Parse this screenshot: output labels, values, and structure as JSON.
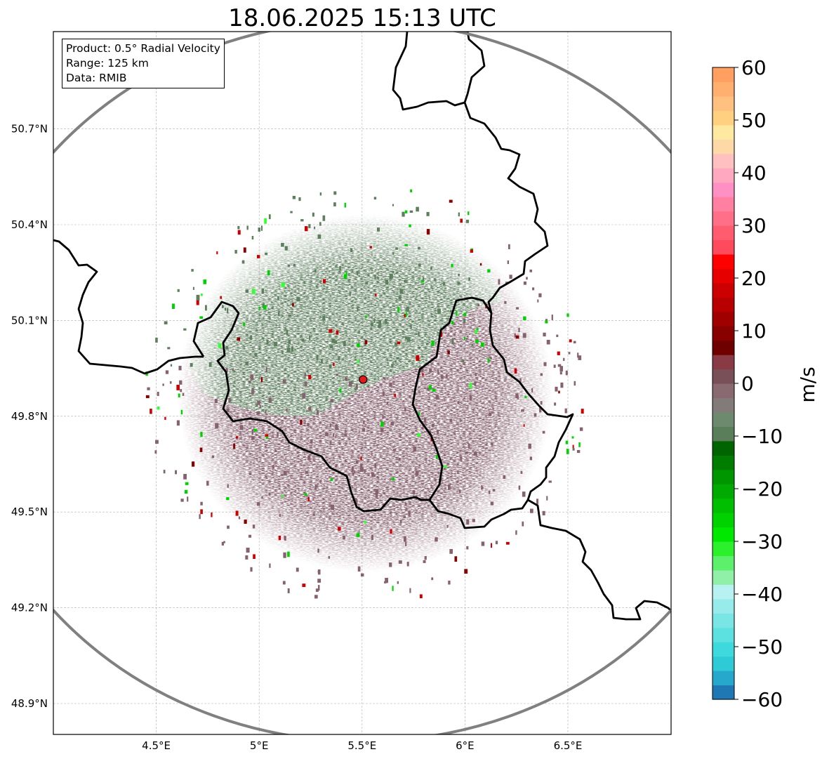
{
  "title": "18.06.2025 15:13 UTC",
  "info": {
    "product": "Product: 0.5° Radial Velocity",
    "range": "Range: 125 km",
    "data": "Data: RMIB"
  },
  "map": {
    "lon_range": [
      4.0,
      7.0
    ],
    "lat_range": [
      48.8,
      50.99
    ],
    "x_ticks": [
      "4.5°E",
      "5°E",
      "5.5°E",
      "6°E",
      "6.5°E"
    ],
    "x_tick_values": [
      4.5,
      5.0,
      5.5,
      6.0,
      6.5
    ],
    "y_ticks": [
      "48.9°N",
      "49.2°N",
      "49.5°N",
      "49.8°N",
      "50.1°N",
      "50.4°N",
      "50.7°N"
    ],
    "y_tick_values": [
      48.9,
      49.2,
      49.5,
      49.8,
      50.1,
      50.4,
      50.7
    ],
    "radar_site": {
      "lon": 5.505,
      "lat": 49.915,
      "color": "#e41a1c"
    },
    "range_ring_km": 125,
    "grid": true
  },
  "colorbar": {
    "label": "m/s",
    "min": -60,
    "max": 60,
    "ticks": [
      "60",
      "50",
      "40",
      "30",
      "20",
      "10",
      "0",
      "−10",
      "−20",
      "−30",
      "−40",
      "−50",
      "−60"
    ],
    "tick_values": [
      60,
      50,
      40,
      30,
      20,
      10,
      0,
      -10,
      -20,
      -30,
      -40,
      -50,
      -60
    ],
    "colors_bottom_to_top": [
      "#1f78b4",
      "#26a7cc",
      "#2ecad6",
      "#3ed9dc",
      "#5ce0e0",
      "#7ae5e5",
      "#98ebeb",
      "#b8f1f1",
      "#90f0a8",
      "#5cf06c",
      "#2cf02c",
      "#00e800",
      "#00d200",
      "#00be00",
      "#00aa00",
      "#009600",
      "#007d00",
      "#006400",
      "#5a7d5a",
      "#6e8a6e",
      "#837a7a",
      "#8a6a72",
      "#7a5058",
      "#8a3a44",
      "#6e0000",
      "#880000",
      "#a00000",
      "#b80000",
      "#cc0000",
      "#e60000",
      "#ff0000",
      "#ff4a5e",
      "#ff5c70",
      "#ff7088",
      "#ff80a0",
      "#ff90c4",
      "#ffa8c0",
      "#ffc0c0",
      "#ffd8a8",
      "#ffe8a0",
      "#ffd080",
      "#ffc080",
      "#ffb070",
      "#ffa060"
    ]
  },
  "colors": {
    "approaching_green": "#5e7f5e",
    "receding_brown": "#86616e",
    "border": "#000000",
    "range_ring": "#808080"
  }
}
